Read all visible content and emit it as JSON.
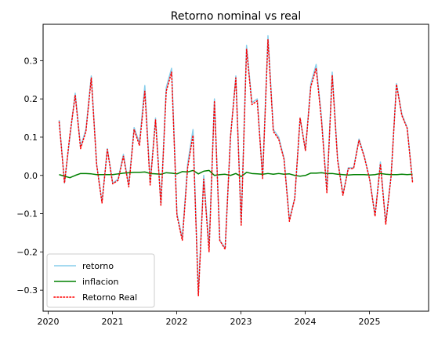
{
  "chart_data": {
    "type": "line",
    "title": "Retorno nominal vs real",
    "xlabel": "",
    "ylabel": "",
    "xlim": [
      2019.92,
      2025.92
    ],
    "ylim": [
      -0.355,
      0.395
    ],
    "x_ticks": [
      2020,
      2021,
      2022,
      2023,
      2024,
      2025
    ],
    "x_tick_labels": [
      "2020",
      "2021",
      "2022",
      "2023",
      "2024",
      "2025"
    ],
    "y_ticks": [
      -0.3,
      -0.2,
      -0.1,
      0.0,
      0.1,
      0.2,
      0.3
    ],
    "y_tick_labels": [
      "−0.3",
      "−0.2",
      "−0.1",
      "0.0",
      "0.1",
      "0.2",
      "0.3"
    ],
    "grid": false,
    "legend_position": "lower-left",
    "x_start": 2020.17,
    "x_step_months": 1,
    "series": [
      {
        "name": "retorno",
        "color": "#87ceeb",
        "style": "solid",
        "values": [
          0.145,
          -0.02,
          0.1,
          0.215,
          0.075,
          0.12,
          0.26,
          0.03,
          -0.07,
          0.07,
          -0.02,
          -0.01,
          0.055,
          -0.025,
          0.125,
          0.085,
          0.235,
          -0.02,
          0.15,
          -0.075,
          0.23,
          0.28,
          -0.1,
          -0.165,
          0.03,
          0.12,
          -0.31,
          0.0,
          -0.19,
          0.2,
          -0.17,
          -0.19,
          0.1,
          0.26,
          -0.125,
          0.34,
          0.19,
          0.2,
          -0.005,
          0.365,
          0.12,
          0.1,
          0.045,
          -0.115,
          -0.06,
          0.15,
          0.065,
          0.24,
          0.29,
          0.15,
          -0.04,
          0.27,
          0.045,
          -0.05,
          0.02,
          0.02,
          0.095,
          0.05,
          -0.01,
          -0.105,
          0.035,
          -0.125,
          0.0,
          0.24,
          0.16,
          0.125,
          -0.015
        ]
      },
      {
        "name": "inflacion",
        "color": "#008000",
        "style": "solid",
        "values": [
          0.002,
          -0.002,
          -0.006,
          0.0,
          0.005,
          0.005,
          0.004,
          0.002,
          0.002,
          0.002,
          0.002,
          0.004,
          0.006,
          0.007,
          0.008,
          0.008,
          0.009,
          0.005,
          0.004,
          0.003,
          0.007,
          0.006,
          0.004,
          0.01,
          0.009,
          0.013,
          0.004,
          0.011,
          0.013,
          0.0,
          0.002,
          0.003,
          0.0,
          0.005,
          -0.003,
          0.008,
          0.005,
          0.004,
          0.003,
          0.005,
          0.003,
          0.005,
          0.003,
          0.004,
          0.0,
          -0.002,
          0.0,
          0.006,
          0.006,
          0.007,
          0.005,
          0.005,
          0.003,
          0.002,
          0.001,
          0.002,
          0.002,
          0.002,
          0.001,
          0.002,
          0.005,
          0.003,
          0.002,
          0.002,
          0.003,
          0.002,
          0.003
        ]
      },
      {
        "name": "Retorno Real",
        "color": "#ff0000",
        "style": "dotted",
        "values": [
          0.14,
          -0.02,
          0.105,
          0.21,
          0.07,
          0.115,
          0.255,
          0.028,
          -0.072,
          0.068,
          -0.022,
          -0.013,
          0.05,
          -0.03,
          0.12,
          0.078,
          0.22,
          -0.025,
          0.145,
          -0.078,
          0.22,
          0.27,
          -0.105,
          -0.17,
          0.02,
          0.105,
          -0.315,
          -0.01,
          -0.2,
          0.195,
          -0.17,
          -0.193,
          0.1,
          0.255,
          -0.13,
          0.33,
          0.185,
          0.195,
          -0.008,
          0.355,
          0.115,
          0.095,
          0.042,
          -0.12,
          -0.06,
          0.15,
          0.065,
          0.232,
          0.28,
          0.143,
          -0.045,
          0.262,
          0.04,
          -0.052,
          0.018,
          0.018,
          0.092,
          0.048,
          -0.011,
          -0.107,
          0.03,
          -0.128,
          -0.002,
          0.238,
          0.157,
          0.123,
          -0.018
        ]
      }
    ]
  }
}
